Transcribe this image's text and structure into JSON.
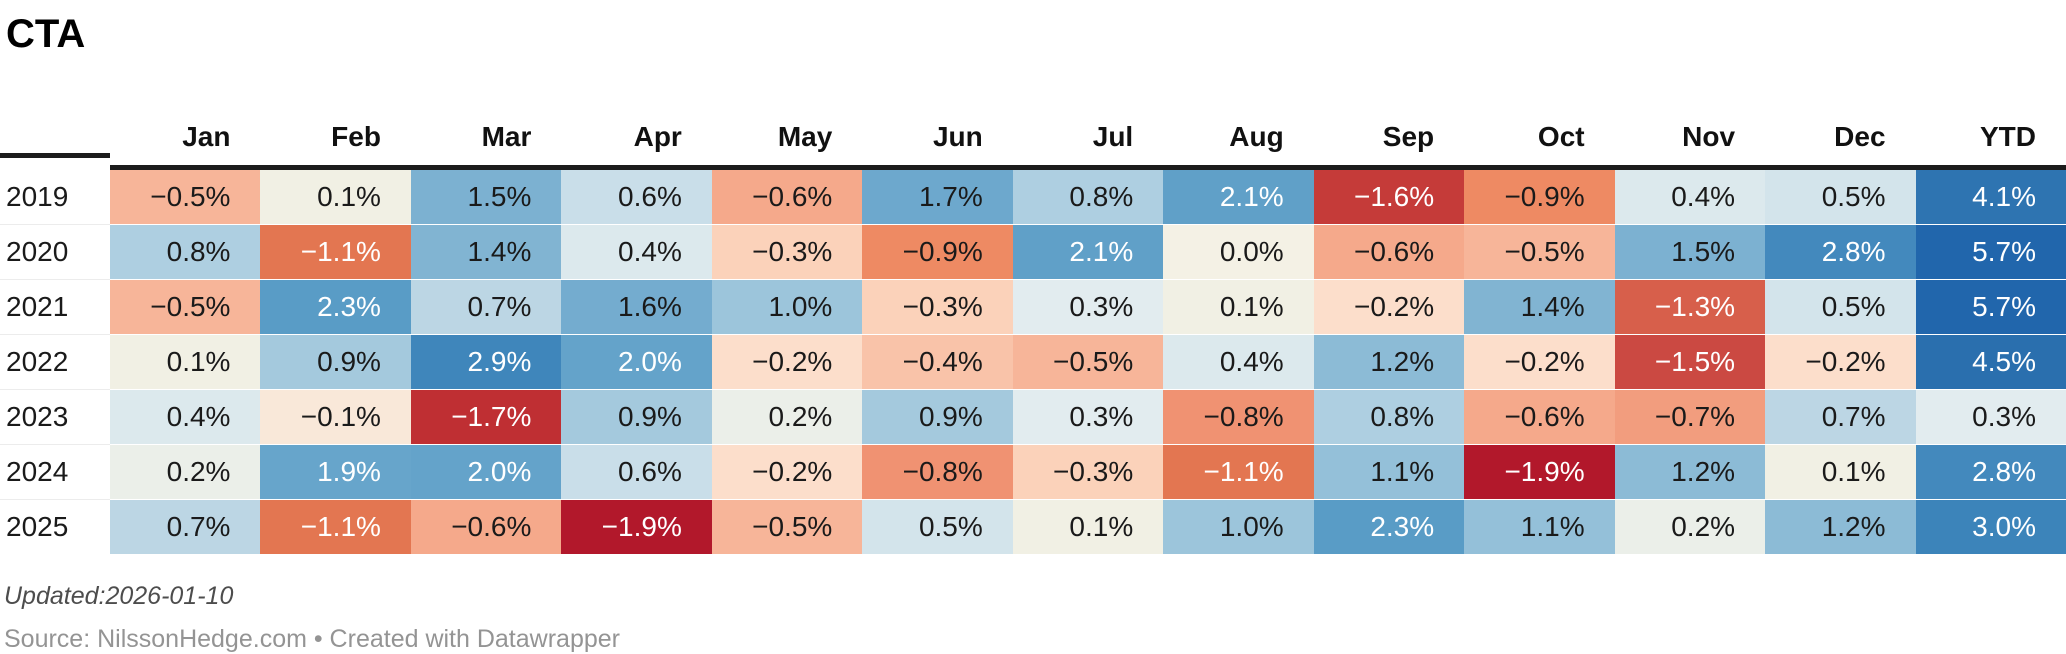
{
  "title": "CTA",
  "footer": {
    "updated": "Updated:2026-01-10",
    "source": "Source: NilssonHedge.com • Created with Datawrapper"
  },
  "table": {
    "columns": [
      "Jan",
      "Feb",
      "Mar",
      "Apr",
      "May",
      "Jun",
      "Jul",
      "Aug",
      "Sep",
      "Oct",
      "Nov",
      "Dec",
      "YTD"
    ],
    "rows": [
      {
        "year": "2019",
        "values": [
          -0.5,
          0.1,
          1.5,
          0.6,
          -0.6,
          1.7,
          0.8,
          2.1,
          -1.6,
          -0.9,
          0.4,
          0.5,
          4.1
        ]
      },
      {
        "year": "2020",
        "values": [
          0.8,
          -1.1,
          1.4,
          0.4,
          -0.3,
          -0.9,
          2.1,
          0.0,
          -0.6,
          -0.5,
          1.5,
          2.8,
          5.7
        ]
      },
      {
        "year": "2021",
        "values": [
          -0.5,
          2.3,
          0.7,
          1.6,
          1.0,
          -0.3,
          0.3,
          0.1,
          -0.2,
          1.4,
          -1.3,
          0.5,
          5.7
        ]
      },
      {
        "year": "2022",
        "values": [
          0.1,
          0.9,
          2.9,
          2.0,
          -0.2,
          -0.4,
          -0.5,
          0.4,
          1.2,
          -0.2,
          -1.5,
          -0.2,
          4.5
        ]
      },
      {
        "year": "2023",
        "values": [
          0.4,
          -0.1,
          -1.7,
          0.9,
          0.2,
          0.9,
          0.3,
          -0.8,
          0.8,
          -0.6,
          -0.7,
          0.7,
          0.3
        ]
      },
      {
        "year": "2024",
        "values": [
          0.2,
          1.9,
          2.0,
          0.6,
          -0.2,
          -0.8,
          -0.3,
          -1.1,
          1.1,
          -1.9,
          1.2,
          0.1,
          2.8
        ]
      },
      {
        "year": "2025",
        "values": [
          0.7,
          -1.1,
          -0.6,
          -1.9,
          -0.5,
          0.5,
          0.1,
          1.0,
          2.3,
          1.1,
          0.2,
          1.2,
          3.0
        ]
      }
    ]
  },
  "chart_data": {
    "type": "heatmap",
    "title": "CTA",
    "x_labels": [
      "Jan",
      "Feb",
      "Mar",
      "Apr",
      "May",
      "Jun",
      "Jul",
      "Aug",
      "Sep",
      "Oct",
      "Nov",
      "Dec",
      "YTD"
    ],
    "y_labels": [
      "2019",
      "2020",
      "2021",
      "2022",
      "2023",
      "2024",
      "2025"
    ],
    "series": [
      {
        "name": "2019",
        "values": [
          -0.5,
          0.1,
          1.5,
          0.6,
          -0.6,
          1.7,
          0.8,
          2.1,
          -1.6,
          -0.9,
          0.4,
          0.5,
          4.1
        ]
      },
      {
        "name": "2020",
        "values": [
          0.8,
          -1.1,
          1.4,
          0.4,
          -0.3,
          -0.9,
          2.1,
          0.0,
          -0.6,
          -0.5,
          1.5,
          2.8,
          5.7
        ]
      },
      {
        "name": "2021",
        "values": [
          -0.5,
          2.3,
          0.7,
          1.6,
          1.0,
          -0.3,
          0.3,
          0.1,
          -0.2,
          1.4,
          -1.3,
          0.5,
          5.7
        ]
      },
      {
        "name": "2022",
        "values": [
          0.1,
          0.9,
          2.9,
          2.0,
          -0.2,
          -0.4,
          -0.5,
          0.4,
          1.2,
          -0.2,
          -1.5,
          -0.2,
          4.5
        ]
      },
      {
        "name": "2023",
        "values": [
          0.4,
          -0.1,
          -1.7,
          0.9,
          0.2,
          0.9,
          0.3,
          -0.8,
          0.8,
          -0.6,
          -0.7,
          0.7,
          0.3
        ]
      },
      {
        "name": "2024",
        "values": [
          0.2,
          1.9,
          2.0,
          0.6,
          -0.2,
          -0.8,
          -0.3,
          -1.1,
          1.1,
          -1.9,
          1.2,
          0.1,
          2.8
        ]
      },
      {
        "name": "2025",
        "values": [
          0.7,
          -1.1,
          -0.6,
          -1.9,
          -0.5,
          0.5,
          0.1,
          1.0,
          2.3,
          1.1,
          0.2,
          1.2,
          3.0
        ]
      }
    ],
    "value_format": "percent_one_decimal",
    "legend": "none",
    "color_scale": "diverging red-blue, negative=red, positive=blue"
  },
  "heatmap": {
    "palette": {
      "-1.9": "#b2182b",
      "-1.7": "#bf2f33",
      "-1.6": "#c53b39",
      "-1.5": "#cb4942",
      "-1.3": "#d75f4b",
      "-1.1": "#e37651",
      "-0.9": "#ee8a63",
      "-0.8": "#f09272",
      "-0.7": "#f29d7e",
      "-0.6": "#f5a98b",
      "-0.5": "#f7b599",
      "-0.4": "#f9c3a9",
      "-0.3": "#fbd2ba",
      "-0.2": "#fcdecb",
      "-0.1": "#f9e8d9",
      "0.0": "#f4f1e5",
      "0.1": "#f1f0e4",
      "0.2": "#ebefe9",
      "0.3": "#e2ecef",
      "0.4": "#dce9ed",
      "0.5": "#d3e4eb",
      "0.6": "#c9dee9",
      "0.7": "#bcd6e4",
      "0.8": "#aecfe1",
      "0.9": "#a4c9dd",
      "1.0": "#9cc5db",
      "1.1": "#94c0d9",
      "1.2": "#8cbbd6",
      "1.4": "#81b4d2",
      "1.5": "#7cb1d1",
      "1.6": "#74accf",
      "1.7": "#6da8cd",
      "1.9": "#67a5cb",
      "2.0": "#64a3ca",
      "2.1": "#60a0c8",
      "2.3": "#599cc6",
      "2.8": "#4389bd",
      "2.9": "#3f86bb",
      "3.0": "#3c84ba",
      "4.1": "#2e74b1",
      "4.5": "#2a6fae",
      "5.7": "#2166ac"
    },
    "text_dark": "#1a1a1a",
    "text_light": "#ffffff",
    "white_text_when_at_least": 1.9,
    "white_text_when_at_most": -1.0,
    "minus_glyph": "−"
  }
}
